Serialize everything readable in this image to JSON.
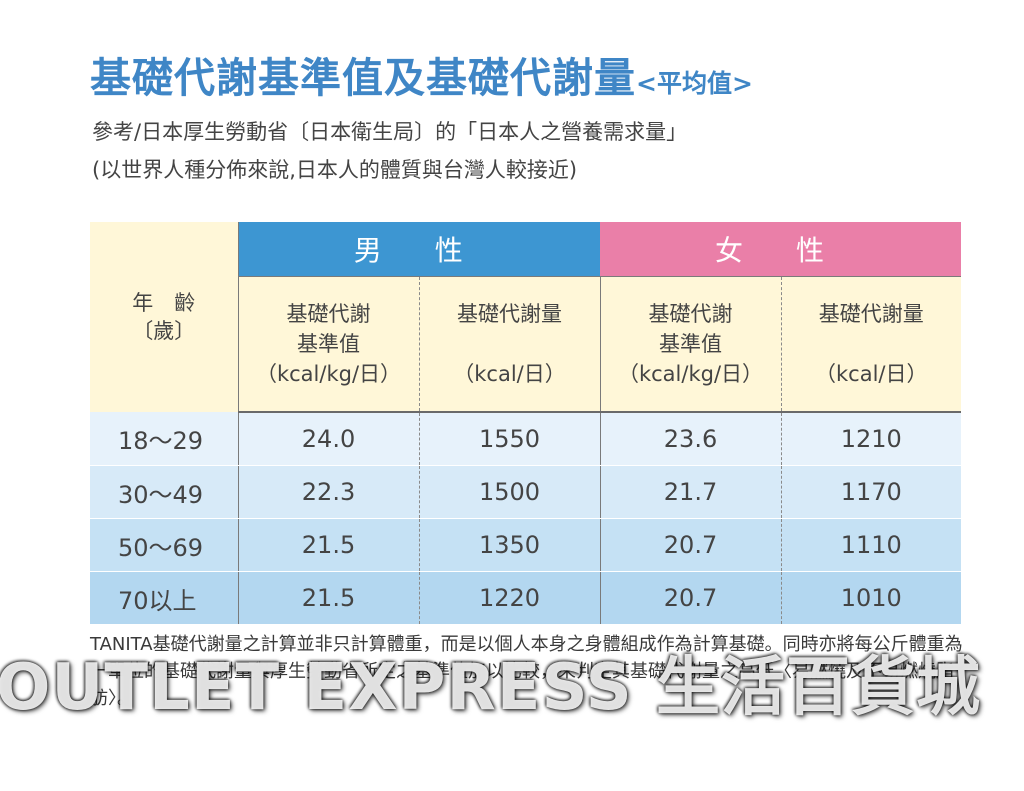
{
  "title": "基礎代謝基準值及基礎代謝量",
  "title_sub": "<平均值>",
  "reference_line1": "參考/日本厚生勞動省〔日本衛生局〕的「日本人之營養需求量」",
  "reference_line2": "(以世界人種分佈來說,日本人的體質與台灣人較接近)",
  "table": {
    "age_header": {
      "line1": "年　齡",
      "line2": "〔歲〕"
    },
    "male_label": "男 性",
    "female_label": "女 性",
    "columns": [
      {
        "line1": "基礎代謝",
        "line2": "基準值",
        "unit": "（kcal/kg/日）"
      },
      {
        "line1": "基礎代謝量",
        "line2": "",
        "unit": "（kcal/日）"
      },
      {
        "line1": "基礎代謝",
        "line2": "基準值",
        "unit": "（kcal/kg/日）"
      },
      {
        "line1": "基礎代謝量",
        "line2": "",
        "unit": "（kcal/日）"
      }
    ],
    "rows": [
      {
        "age": "18～29",
        "male_ref": "24.0",
        "male_amount": "1550",
        "female_ref": "23.6",
        "female_amount": "1210"
      },
      {
        "age": "30～49",
        "male_ref": "22.3",
        "male_amount": "1500",
        "female_ref": "21.7",
        "female_amount": "1170"
      },
      {
        "age": "50～69",
        "male_ref": "21.5",
        "male_amount": "1350",
        "female_ref": "20.7",
        "female_amount": "1110"
      },
      {
        "age": "70以上",
        "male_ref": "21.5",
        "male_amount": "1220",
        "female_ref": "20.7",
        "female_amount": "1010"
      }
    ]
  },
  "note": "TANITA基礎代謝量之計算並非只計算體重，而是以個人本身之身體組成作為計算基礎。同時亦將每公斤體重為一單位的基礎代謝量與厚生勞動省所定之基準值加以比較，來判定其基礎代謝量之高低〈易燃燒及不易燃燒脂肪〉。",
  "watermark": "OUTLET EXPRESS 生活百貨城",
  "colors": {
    "title": "#3f86c6",
    "male_band": "#3d96d2",
    "female_band": "#ea7fa8",
    "header_bg": "#fff7d8",
    "row_shades": [
      "#e7f2fb",
      "#d7eaf8",
      "#c5e1f4",
      "#b3d7f0"
    ]
  }
}
